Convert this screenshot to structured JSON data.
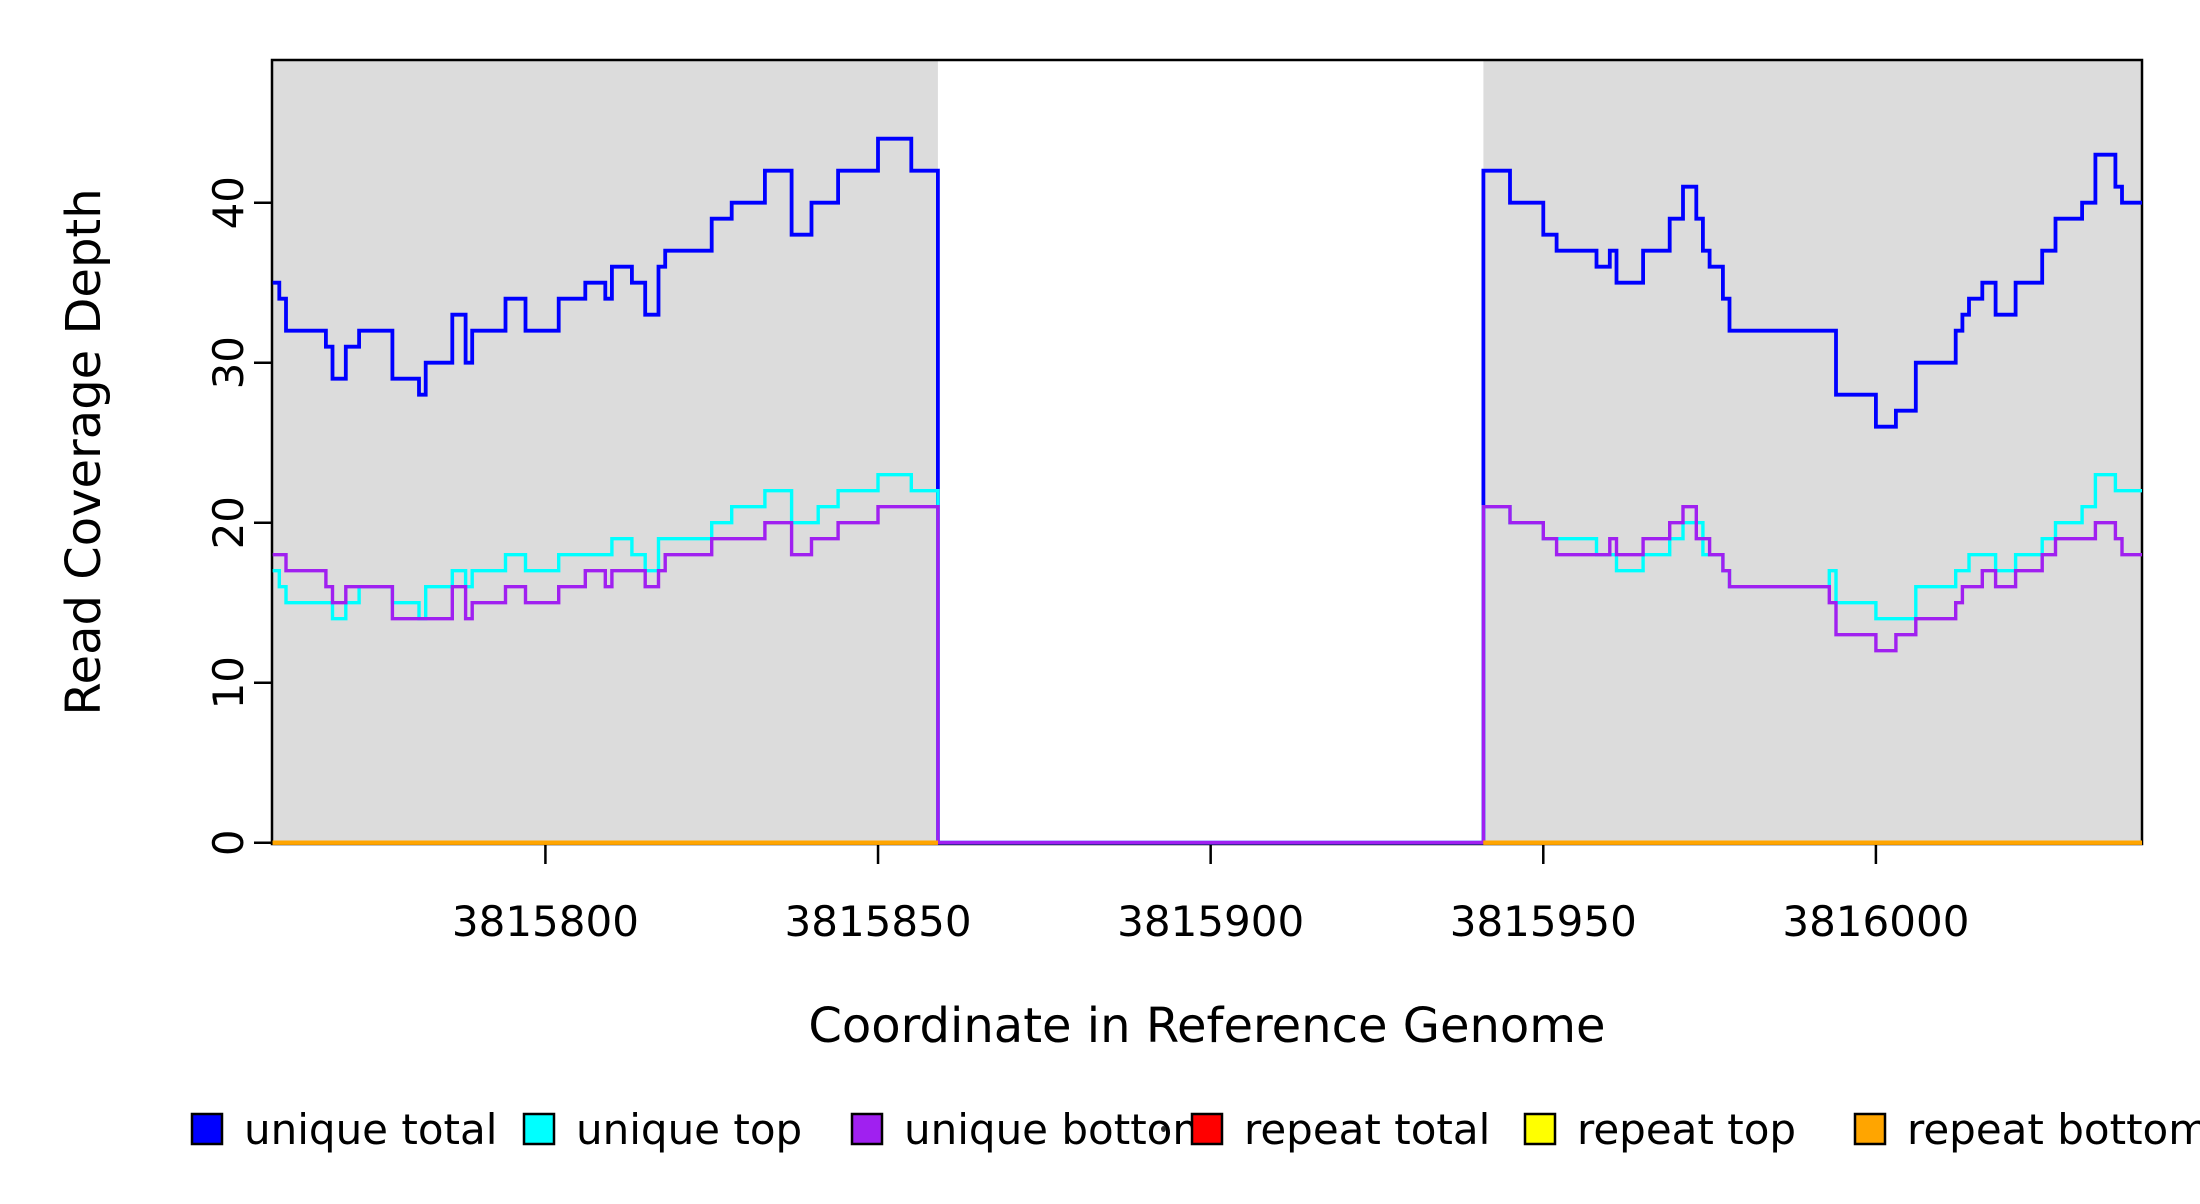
{
  "chart_data": {
    "type": "line",
    "subtype": "step-after-coverage",
    "title": "",
    "xlabel": "Coordinate in Reference Genome",
    "ylabel": "Read Coverage Depth",
    "x_ticks": [
      3815800,
      3815850,
      3815900,
      3815950,
      3816000
    ],
    "y_ticks": [
      0,
      10,
      20,
      30,
      40
    ],
    "xlim": [
      3815759,
      3816040
    ],
    "ylim": [
      0,
      49
    ],
    "grid": false,
    "legend_position": "bottom",
    "shaded_regions": [
      {
        "name": "left-coverage-block",
        "from": 3815759,
        "to": 3815859,
        "color": "#DCDCDC"
      },
      {
        "name": "right-coverage-block",
        "from": 3815941,
        "to": 3816040,
        "color": "#DCDCDC"
      }
    ],
    "gap_region": {
      "from": 3815859,
      "to": 3815941
    },
    "series": [
      {
        "name": "unique total",
        "color": "#0000FF",
        "width": 3.8,
        "segments": [
          [
            [
              3815759,
              35
            ],
            [
              3815760,
              34
            ],
            [
              3815761,
              32
            ],
            [
              3815767,
              31
            ],
            [
              3815768,
              29
            ],
            [
              3815770,
              31
            ],
            [
              3815772,
              32
            ],
            [
              3815777,
              29
            ],
            [
              3815781,
              28
            ],
            [
              3815782,
              30
            ],
            [
              3815786,
              33
            ],
            [
              3815788,
              30
            ],
            [
              3815789,
              32
            ],
            [
              3815794,
              34
            ],
            [
              3815797,
              32
            ],
            [
              3815802,
              34
            ],
            [
              3815806,
              35
            ],
            [
              3815809,
              34
            ],
            [
              3815810,
              36
            ],
            [
              3815813,
              35
            ],
            [
              3815815,
              33
            ],
            [
              3815817,
              36
            ],
            [
              3815818,
              37
            ],
            [
              3815825,
              39
            ],
            [
              3815828,
              40
            ],
            [
              3815833,
              42
            ],
            [
              3815837,
              38
            ],
            [
              3815840,
              40
            ],
            [
              3815844,
              42
            ],
            [
              3815850,
              44
            ],
            [
              3815855,
              42
            ],
            [
              3815859,
              0
            ],
            [
              3815941,
              42
            ],
            [
              3815945,
              40
            ],
            [
              3815950,
              38
            ],
            [
              3815952,
              37
            ],
            [
              3815958,
              36
            ],
            [
              3815960,
              37
            ],
            [
              3815961,
              35
            ],
            [
              3815965,
              37
            ],
            [
              3815969,
              39
            ],
            [
              3815971,
              41
            ],
            [
              3815973,
              39
            ],
            [
              3815974,
              37
            ],
            [
              3815975,
              36
            ],
            [
              3815977,
              34
            ],
            [
              3815978,
              32
            ],
            [
              3815994,
              28
            ],
            [
              3816000,
              26
            ],
            [
              3816003,
              27
            ],
            [
              3816006,
              30
            ],
            [
              3816012,
              32
            ],
            [
              3816013,
              33
            ],
            [
              3816014,
              34
            ],
            [
              3816016,
              35
            ],
            [
              3816018,
              33
            ],
            [
              3816021,
              35
            ],
            [
              3816025,
              37
            ],
            [
              3816027,
              39
            ],
            [
              3816031,
              40
            ],
            [
              3816033,
              43
            ],
            [
              3816036,
              41
            ],
            [
              3816037,
              40
            ],
            [
              3816040,
              40
            ]
          ]
        ]
      },
      {
        "name": "unique top",
        "color": "#00FFFF",
        "width": 3.4,
        "segments": [
          [
            [
              3815759,
              17
            ],
            [
              3815760,
              16
            ],
            [
              3815761,
              15
            ],
            [
              3815768,
              14
            ],
            [
              3815770,
              15
            ],
            [
              3815772,
              16
            ],
            [
              3815777,
              15
            ],
            [
              3815781,
              14
            ],
            [
              3815782,
              16
            ],
            [
              3815786,
              17
            ],
            [
              3815788,
              16
            ],
            [
              3815789,
              17
            ],
            [
              3815794,
              18
            ],
            [
              3815797,
              17
            ],
            [
              3815802,
              18
            ],
            [
              3815810,
              19
            ],
            [
              3815813,
              18
            ],
            [
              3815815,
              17
            ],
            [
              3815817,
              19
            ],
            [
              3815825,
              20
            ],
            [
              3815828,
              21
            ],
            [
              3815833,
              22
            ],
            [
              3815837,
              20
            ],
            [
              3815841,
              21
            ],
            [
              3815844,
              22
            ],
            [
              3815850,
              23
            ],
            [
              3815855,
              22
            ],
            [
              3815859,
              0
            ],
            [
              3815941,
              21
            ],
            [
              3815945,
              20
            ],
            [
              3815950,
              19
            ],
            [
              3815958,
              18
            ],
            [
              3815961,
              17
            ],
            [
              3815965,
              18
            ],
            [
              3815969,
              19
            ],
            [
              3815971,
              20
            ],
            [
              3815974,
              18
            ],
            [
              3815977,
              17
            ],
            [
              3815978,
              16
            ],
            [
              3815993,
              17
            ],
            [
              3815994,
              15
            ],
            [
              3816000,
              14
            ],
            [
              3816006,
              16
            ],
            [
              3816012,
              17
            ],
            [
              3816014,
              18
            ],
            [
              3816018,
              17
            ],
            [
              3816021,
              18
            ],
            [
              3816025,
              19
            ],
            [
              3816027,
              20
            ],
            [
              3816031,
              21
            ],
            [
              3816033,
              23
            ],
            [
              3816036,
              22
            ],
            [
              3816040,
              22
            ]
          ]
        ]
      },
      {
        "name": "unique bottom",
        "color": "#A020F0",
        "width": 3.4,
        "segments": [
          [
            [
              3815759,
              18
            ],
            [
              3815761,
              17
            ],
            [
              3815767,
              16
            ],
            [
              3815768,
              15
            ],
            [
              3815770,
              16
            ],
            [
              3815777,
              14
            ],
            [
              3815786,
              16
            ],
            [
              3815788,
              14
            ],
            [
              3815789,
              15
            ],
            [
              3815794,
              16
            ],
            [
              3815797,
              15
            ],
            [
              3815802,
              16
            ],
            [
              3815806,
              17
            ],
            [
              3815809,
              16
            ],
            [
              3815810,
              17
            ],
            [
              3815815,
              16
            ],
            [
              3815817,
              17
            ],
            [
              3815818,
              18
            ],
            [
              3815825,
              19
            ],
            [
              3815833,
              20
            ],
            [
              3815837,
              18
            ],
            [
              3815840,
              19
            ],
            [
              3815844,
              20
            ],
            [
              3815850,
              21
            ],
            [
              3815859,
              0
            ],
            [
              3815941,
              21
            ],
            [
              3815945,
              20
            ],
            [
              3815950,
              19
            ],
            [
              3815952,
              18
            ],
            [
              3815960,
              19
            ],
            [
              3815961,
              18
            ],
            [
              3815965,
              19
            ],
            [
              3815969,
              20
            ],
            [
              3815971,
              21
            ],
            [
              3815973,
              19
            ],
            [
              3815975,
              18
            ],
            [
              3815977,
              17
            ],
            [
              3815978,
              16
            ],
            [
              3815993,
              15
            ],
            [
              3815994,
              13
            ],
            [
              3816000,
              12
            ],
            [
              3816003,
              13
            ],
            [
              3816006,
              14
            ],
            [
              3816012,
              15
            ],
            [
              3816013,
              16
            ],
            [
              3816016,
              17
            ],
            [
              3816018,
              16
            ],
            [
              3816021,
              17
            ],
            [
              3816025,
              18
            ],
            [
              3816027,
              19
            ],
            [
              3816033,
              20
            ],
            [
              3816036,
              19
            ],
            [
              3816037,
              18
            ],
            [
              3816040,
              18
            ]
          ]
        ]
      },
      {
        "name": "repeat total",
        "color": "#FF0000",
        "width": 3.8,
        "segments": [
          [
            [
              3815759,
              0
            ],
            [
              3815859,
              0
            ]
          ],
          [
            [
              3815941,
              0
            ],
            [
              3816040,
              0
            ]
          ]
        ]
      },
      {
        "name": "repeat top",
        "color": "#FFFF00",
        "width": 3.8,
        "segments": [
          [
            [
              3815759,
              0
            ],
            [
              3815859,
              0
            ]
          ],
          [
            [
              3815941,
              0
            ],
            [
              3816040,
              0
            ]
          ]
        ]
      },
      {
        "name": "repeat bottom",
        "color": "#FFA500",
        "width": 4.4,
        "segments": [
          [
            [
              3815759,
              0
            ],
            [
              3815859,
              0
            ]
          ],
          [
            [
              3815941,
              0
            ],
            [
              3816040,
              0
            ]
          ]
        ]
      }
    ],
    "legend": [
      {
        "label": "unique total",
        "color": "#0000FF"
      },
      {
        "label": "unique top",
        "color": "#00FFFF"
      },
      {
        "label": "unique bottom",
        "color": "#A020F0"
      },
      {
        "label": "repeat total",
        "color": "#FF0000"
      },
      {
        "label": "repeat top",
        "color": "#FFFF00"
      },
      {
        "label": "repeat bottom",
        "color": "#FFA500"
      }
    ]
  }
}
